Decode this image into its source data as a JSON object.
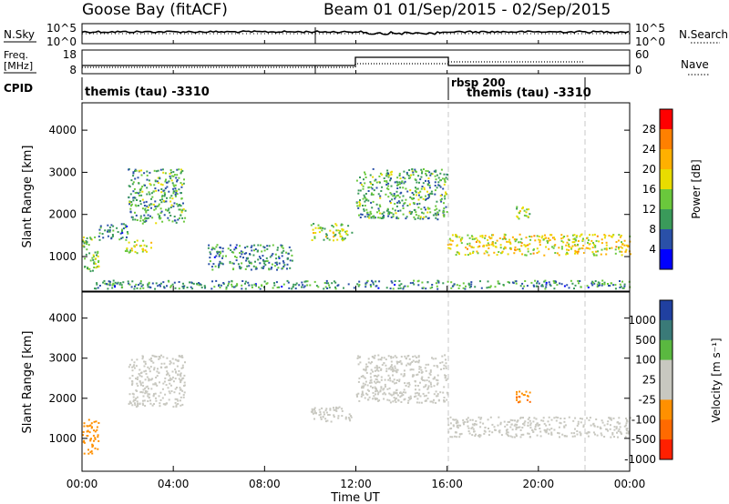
{
  "header": {
    "title_left": "Goose Bay (fitACF)",
    "title_right": "Beam 01  01/Sep/2015 - 02/Sep/2015"
  },
  "panels": {
    "nsky": {
      "label": "N.Sky",
      "ticks": [
        "10^5",
        "10^0"
      ],
      "right_label": "N.Search",
      "right_ticks": [
        "10^5",
        "10^0"
      ]
    },
    "freq": {
      "label_line1": "Freq.",
      "label_line2": "[MHz]",
      "ticks": [
        "18",
        "8"
      ],
      "right_label": "Nave",
      "right_ticks": [
        "60",
        "0"
      ]
    },
    "cpid": {
      "label": "CPID",
      "segments": [
        {
          "text": "themis (tau) -3310"
        },
        {
          "text": "rbsp 200"
        },
        {
          "text": "themis (tau) -3310"
        }
      ]
    }
  },
  "colorbars": {
    "power": {
      "label": "Power [dB]",
      "ticks": [
        "28",
        "24",
        "20",
        "16",
        "12",
        "8",
        "4"
      ],
      "colors": [
        "#ff0000",
        "#ff8000",
        "#ffb000",
        "#e8dc00",
        "#6ac83c",
        "#3a9a5a",
        "#2a50a8",
        "#0000ff"
      ]
    },
    "velocity": {
      "label": "Velocity [m s⁻¹]",
      "ticks": [
        "1000",
        "500",
        "100",
        "25",
        "-25",
        "-100",
        "-500",
        "-1000"
      ],
      "colors": [
        "#2040a0",
        "#3a7a78",
        "#5ab840",
        "#c8c8c0",
        "#c8c8c0",
        "#ff9000",
        "#ff6a00",
        "#ff2000"
      ]
    }
  },
  "axes": {
    "xlabel": "Time UT",
    "xticks": [
      "00:00",
      "04:00",
      "08:00",
      "12:00",
      "16:00",
      "20:00",
      "00:00"
    ],
    "ylabel": "Slant Range [km]",
    "yticks": [
      "1000",
      "2000",
      "3000",
      "4000"
    ]
  },
  "chart_data": [
    {
      "type": "heatmap",
      "title": "Goose Bay (fitACF)",
      "ylabel": "Slant Range [km]",
      "xlabel": "Time UT",
      "xlim_hours": [
        0,
        24
      ],
      "ylim_km": [
        180,
        4650
      ],
      "colorbar": "Power [dB]",
      "colorbar_range": [
        0,
        30
      ],
      "regions": [
        {
          "x": [
            0.0,
            0.7
          ],
          "y": [
            600,
            1500
          ],
          "value": 12
        },
        {
          "x": [
            0.7,
            2.0
          ],
          "y": [
            1400,
            1800
          ],
          "value": 8
        },
        {
          "x": [
            2.0,
            4.5
          ],
          "y": [
            1800,
            3100
          ],
          "value": 10
        },
        {
          "x": [
            1.8,
            3.0
          ],
          "y": [
            1100,
            1400
          ],
          "value": 16
        },
        {
          "x": [
            5.5,
            9.2
          ],
          "y": [
            700,
            1300
          ],
          "value": 8
        },
        {
          "x": [
            10.0,
            11.8
          ],
          "y": [
            1400,
            1800
          ],
          "value": 14
        },
        {
          "x": [
            12.0,
            16.0
          ],
          "y": [
            1900,
            3100
          ],
          "value": 10
        },
        {
          "x": [
            16.0,
            24.0
          ],
          "y": [
            1050,
            1550
          ],
          "value": 18
        },
        {
          "x": [
            19.0,
            19.6
          ],
          "y": [
            1900,
            2200
          ],
          "value": 14
        },
        {
          "x": [
            0.5,
            24.0
          ],
          "y": [
            250,
            450
          ],
          "value": 8
        }
      ]
    },
    {
      "type": "heatmap",
      "ylabel": "Slant Range [km]",
      "xlabel": "Time UT",
      "xlim_hours": [
        0,
        24
      ],
      "ylim_km": [
        180,
        4650
      ],
      "colorbar": "Velocity [m s⁻¹]",
      "colorbar_range": [
        -1000,
        1000
      ],
      "regions": [
        {
          "x": [
            0.0,
            0.7
          ],
          "y": [
            600,
            1500
          ],
          "value": -100
        },
        {
          "x": [
            2.0,
            4.5
          ],
          "y": [
            1800,
            3100
          ],
          "value": 0
        },
        {
          "x": [
            10.0,
            11.8
          ],
          "y": [
            1400,
            1800
          ],
          "value": 0
        },
        {
          "x": [
            12.0,
            16.0
          ],
          "y": [
            1900,
            3100
          ],
          "value": 0
        },
        {
          "x": [
            16.0,
            24.0
          ],
          "y": [
            1050,
            1550
          ],
          "value": 0
        },
        {
          "x": [
            19.0,
            19.6
          ],
          "y": [
            1900,
            2200
          ],
          "value": -300
        }
      ]
    }
  ]
}
